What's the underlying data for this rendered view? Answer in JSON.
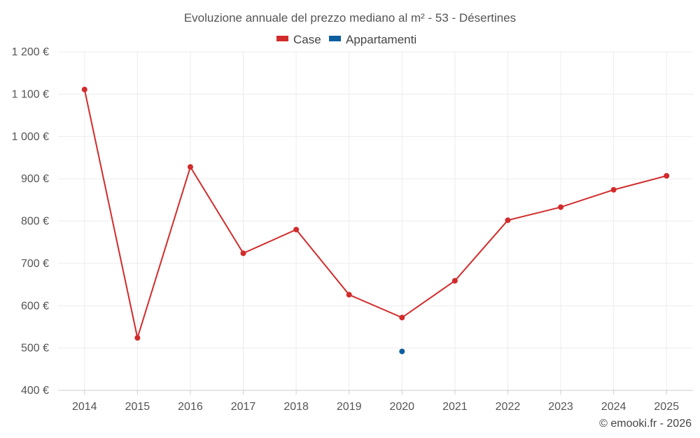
{
  "chart_data": {
    "type": "line",
    "title": "Evoluzione annuale del prezzo mediano al m² - 53 - Désertines",
    "categories": [
      "2014",
      "2015",
      "2016",
      "2017",
      "2018",
      "2019",
      "2020",
      "2021",
      "2022",
      "2023",
      "2024",
      "2025"
    ],
    "series": [
      {
        "name": "Case",
        "color": "#d22b2b",
        "values": [
          1111,
          524,
          928,
          724,
          780,
          626,
          572,
          659,
          802,
          833,
          874,
          907
        ]
      },
      {
        "name": "Appartamenti",
        "color": "#0d5fa0",
        "values": [
          null,
          null,
          null,
          null,
          null,
          null,
          492,
          null,
          null,
          null,
          null,
          null
        ]
      }
    ],
    "ylim": [
      400,
      1200
    ],
    "yticks": [
      400,
      500,
      600,
      700,
      800,
      900,
      1000,
      1100,
      1200
    ],
    "ytick_labels": [
      "400 €",
      "500 €",
      "600 €",
      "700 €",
      "800 €",
      "900 €",
      "1 000 €",
      "1 100 €",
      "1 200 €"
    ],
    "xlabel": "",
    "ylabel": "",
    "legend": "top-center",
    "grid": true
  },
  "credit": "© emooki.fr - 2026"
}
